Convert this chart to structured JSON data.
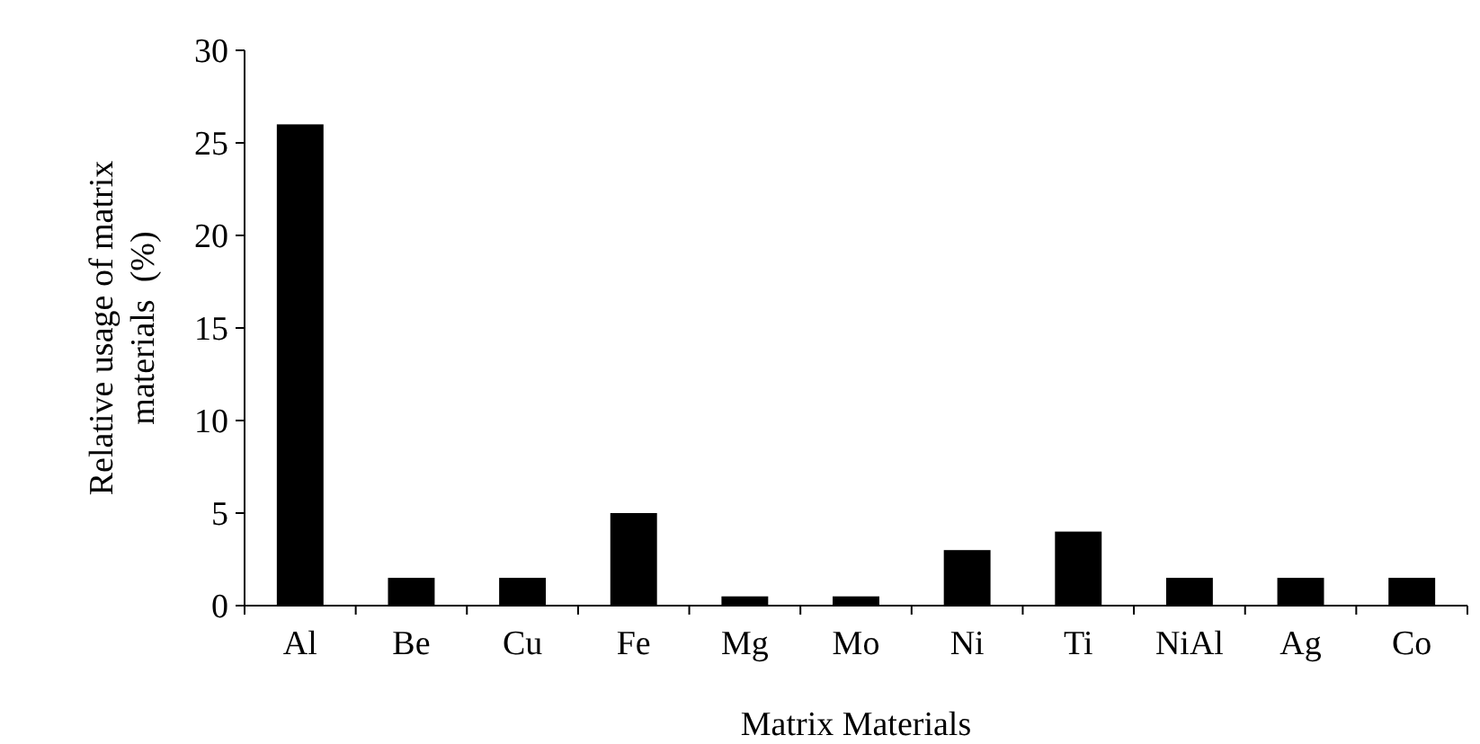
{
  "chart_data": {
    "type": "bar",
    "xlabel": "Matrix Materials",
    "ylabel": "Relative usage of matrix materials  (%)",
    "categories": [
      "Al",
      "Be",
      "Cu",
      "Fe",
      "Mg",
      "Mo",
      "Ni",
      "Ti",
      "NiAl",
      "Ag",
      "Co"
    ],
    "values": [
      26,
      1.5,
      1.5,
      5,
      0.5,
      0.5,
      3,
      4,
      1.5,
      1.5,
      1.5
    ],
    "color": "#000000",
    "ylim": [
      0,
      30
    ],
    "yticks": [
      0,
      5,
      10,
      15,
      20,
      25,
      30
    ],
    "grid": false
  }
}
